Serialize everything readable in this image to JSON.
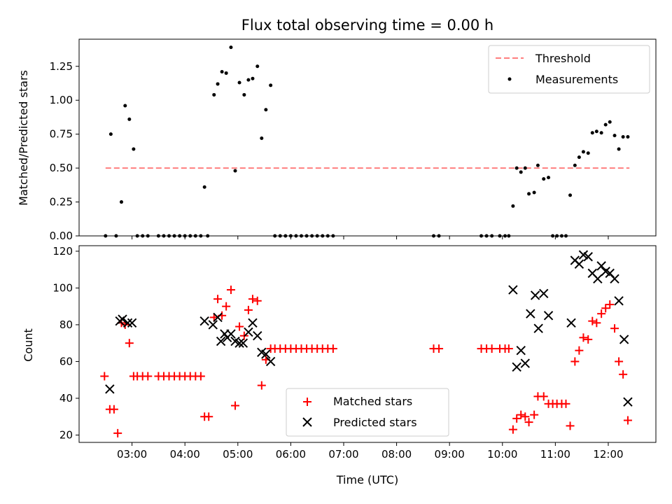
{
  "chart_data": [
    {
      "type": "scatter",
      "title": "Flux total observing time = 0.00 h",
      "xlabel": "",
      "ylabel": "Matched/Predicted stars",
      "xlim": [
        2.0,
        12.9
      ],
      "ylim": [
        0.0,
        1.45
      ],
      "yticks": [
        "0.00",
        "0.25",
        "0.50",
        "0.75",
        "1.00",
        "1.25"
      ],
      "legend_position": "upper right",
      "threshold": {
        "name": "Threshold",
        "value": 0.5,
        "x_range": [
          2.5,
          12.4
        ],
        "color": "#ff7f7f"
      },
      "series": [
        {
          "name": "Measurements",
          "color": "#000000",
          "marker": "dot",
          "x": [
            2.5,
            2.6,
            2.7,
            2.8,
            2.87,
            2.95,
            3.03,
            3.1,
            3.2,
            3.3,
            3.5,
            3.6,
            3.7,
            3.8,
            3.9,
            4.0,
            4.1,
            4.2,
            4.3,
            4.37,
            4.43,
            4.55,
            4.62,
            4.7,
            4.78,
            4.87,
            4.95,
            5.03,
            5.12,
            5.2,
            5.28,
            5.37,
            5.45,
            5.53,
            5.62,
            5.7,
            5.8,
            5.9,
            6.0,
            6.1,
            6.2,
            6.3,
            6.4,
            6.5,
            6.6,
            6.7,
            6.8,
            8.7,
            8.8,
            9.6,
            9.7,
            9.8,
            9.95,
            10.05,
            10.12,
            10.2,
            10.27,
            10.35,
            10.43,
            10.5,
            10.6,
            10.67,
            10.78,
            10.87,
            10.95,
            11.03,
            11.12,
            11.2,
            11.28,
            11.37,
            11.45,
            11.53,
            11.62,
            11.7,
            11.78,
            11.87,
            11.95,
            12.03,
            12.12,
            12.2,
            12.28,
            12.37
          ],
          "y": [
            0.0,
            0.75,
            0.0,
            0.25,
            0.96,
            0.86,
            0.64,
            0.0,
            0.0,
            0.0,
            0.0,
            0.0,
            0.0,
            0.0,
            0.0,
            0.0,
            0.0,
            0.0,
            0.0,
            0.36,
            0.0,
            1.04,
            1.12,
            1.21,
            1.2,
            1.39,
            0.48,
            1.13,
            1.04,
            1.15,
            1.16,
            1.25,
            0.72,
            0.93,
            1.11,
            0.0,
            0.0,
            0.0,
            0.0,
            0.0,
            0.0,
            0.0,
            0.0,
            0.0,
            0.0,
            0.0,
            0.0,
            0.0,
            0.0,
            0.0,
            0.0,
            0.0,
            0.0,
            0.0,
            0.0,
            0.22,
            0.5,
            0.47,
            0.5,
            0.31,
            0.32,
            0.52,
            0.42,
            0.43,
            0.0,
            0.0,
            0.0,
            0.0,
            0.3,
            0.52,
            0.58,
            0.62,
            0.61,
            0.76,
            0.77,
            0.76,
            0.82,
            0.84,
            0.74,
            0.64,
            0.73,
            0.73
          ]
        }
      ]
    },
    {
      "type": "scatter",
      "title": "",
      "xlabel": "Time (UTC)",
      "ylabel": "Count",
      "xlim": [
        2.0,
        12.9
      ],
      "ylim": [
        16,
        123
      ],
      "xticks": [
        {
          "value": 3,
          "label": "03:00"
        },
        {
          "value": 4,
          "label": "04:00"
        },
        {
          "value": 5,
          "label": "05:00"
        },
        {
          "value": 6,
          "label": "06:00"
        },
        {
          "value": 7,
          "label": "07:00"
        },
        {
          "value": 8,
          "label": "08:00"
        },
        {
          "value": 9,
          "label": "09:00"
        },
        {
          "value": 10,
          "label": "10:00"
        },
        {
          "value": 11,
          "label": "11:00"
        },
        {
          "value": 12,
          "label": "12:00"
        }
      ],
      "yticks": [
        "20",
        "40",
        "60",
        "80",
        "100",
        "120"
      ],
      "legend_position": "lower center",
      "series": [
        {
          "name": "Matched stars",
          "color": "#ff0000",
          "marker": "plus",
          "x": [
            2.48,
            2.58,
            2.66,
            2.73,
            2.8,
            2.87,
            2.95,
            3.03,
            3.1,
            3.2,
            3.3,
            3.5,
            3.6,
            3.7,
            3.8,
            3.9,
            4.0,
            4.1,
            4.2,
            4.3,
            4.37,
            4.45,
            4.55,
            4.62,
            4.7,
            4.78,
            4.87,
            4.95,
            5.03,
            5.12,
            5.2,
            5.28,
            5.37,
            5.45,
            5.53,
            5.62,
            5.7,
            5.8,
            5.9,
            6.0,
            6.1,
            6.2,
            6.3,
            6.4,
            6.5,
            6.6,
            6.7,
            6.8,
            8.7,
            8.8,
            9.6,
            9.7,
            9.8,
            9.95,
            10.05,
            10.12,
            10.2,
            10.27,
            10.35,
            10.43,
            10.5,
            10.6,
            10.67,
            10.78,
            10.87,
            10.95,
            11.03,
            11.12,
            11.2,
            11.28,
            11.37,
            11.45,
            11.53,
            11.62,
            11.7,
            11.78,
            11.87,
            11.95,
            12.03,
            12.12,
            12.2,
            12.28,
            12.37
          ],
          "y": [
            52,
            34,
            34,
            21,
            81,
            80,
            70,
            52,
            52,
            52,
            52,
            52,
            52,
            52,
            52,
            52,
            52,
            52,
            52,
            52,
            30,
            30,
            84,
            94,
            85,
            90,
            99,
            36,
            79,
            74,
            88,
            94,
            93,
            47,
            61,
            67,
            67,
            67,
            67,
            67,
            67,
            67,
            67,
            67,
            67,
            67,
            67,
            67,
            67,
            67,
            67,
            67,
            67,
            67,
            67,
            67,
            23,
            29,
            31,
            30,
            27,
            31,
            41,
            41,
            37,
            37,
            37,
            37,
            37,
            25,
            60,
            66,
            73,
            72,
            82,
            81,
            86,
            89,
            91,
            78,
            60,
            53,
            28
          ]
        },
        {
          "name": "Predicted stars",
          "color": "#000000",
          "marker": "x",
          "x": [
            2.58,
            2.77,
            2.82,
            2.92,
            3.0,
            4.37,
            4.53,
            4.62,
            4.68,
            4.75,
            4.8,
            4.87,
            4.95,
            5.03,
            5.1,
            5.2,
            5.28,
            5.37,
            5.45,
            5.53,
            5.62,
            10.2,
            10.27,
            10.35,
            10.43,
            10.53,
            10.62,
            10.68,
            10.78,
            10.87,
            11.3,
            11.37,
            11.45,
            11.53,
            11.62,
            11.7,
            11.8,
            11.87,
            11.95,
            12.03,
            12.12,
            12.2,
            12.3,
            12.37
          ],
          "y": [
            45,
            82,
            83,
            81,
            81,
            82,
            80,
            84,
            71,
            75,
            73,
            75,
            71,
            70,
            70,
            76,
            81,
            74,
            65,
            64,
            60,
            99,
            57,
            66,
            59,
            86,
            96,
            78,
            97,
            85,
            81,
            115,
            113,
            118,
            117,
            108,
            105,
            112,
            109,
            108,
            105,
            93,
            72,
            38
          ]
        }
      ]
    }
  ]
}
